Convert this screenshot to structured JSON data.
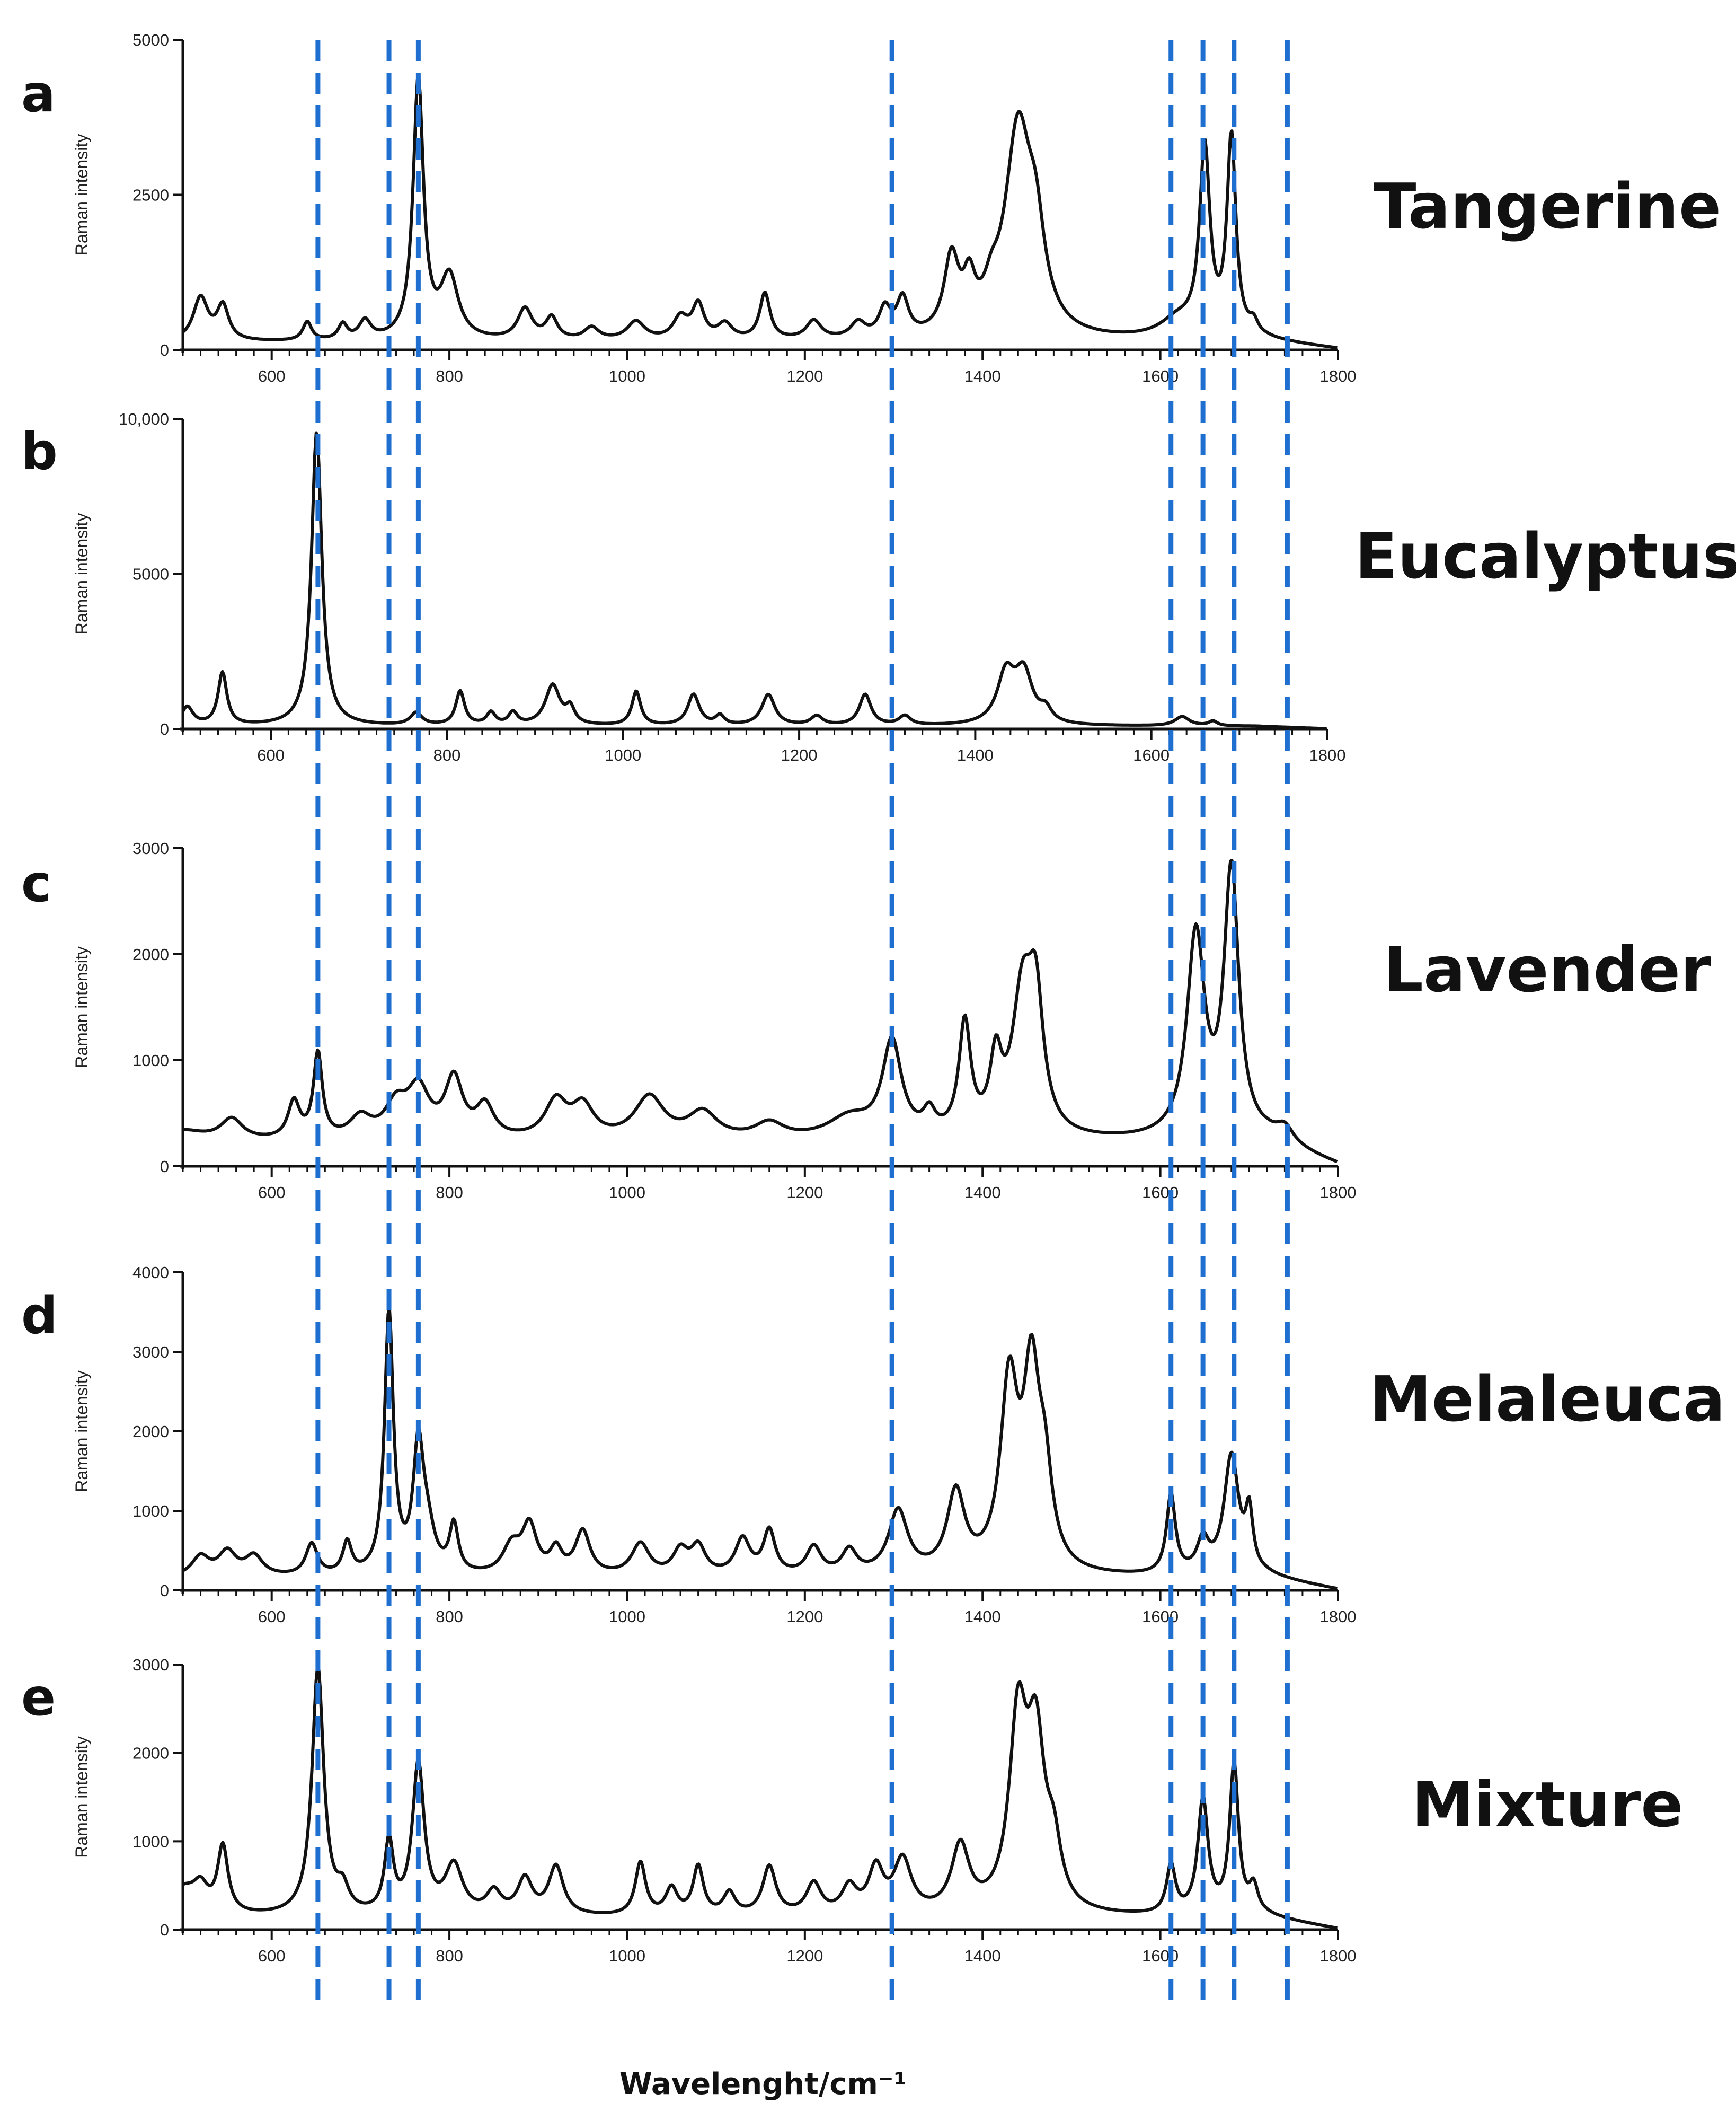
{
  "figure": {
    "xlabel": "Wavelenght/cm⁻¹",
    "guide_lines_x": [
      652,
      732,
      765,
      1298,
      1612,
      1648,
      1683,
      1743
    ],
    "guide_color": "#1f6fd1",
    "line_color": "#111111"
  },
  "chart_data": [
    {
      "type": "line",
      "panel": "a",
      "title": "Tangerine",
      "ylabel": "Raman intensity",
      "xlim": [
        500,
        1800
      ],
      "ylim": [
        0,
        5000
      ],
      "xticks": [
        600,
        800,
        1000,
        1200,
        1400,
        1600,
        1800
      ],
      "yticks": [
        0,
        2500,
        5000
      ],
      "ytick_labels": [
        "0",
        "2500",
        "5000"
      ],
      "baseline": 120,
      "peaks": [
        [
          520,
          700,
          10
        ],
        [
          545,
          550,
          8
        ],
        [
          640,
          300,
          6
        ],
        [
          680,
          250,
          6
        ],
        [
          705,
          300,
          8
        ],
        [
          765,
          4200,
          7
        ],
        [
          800,
          1000,
          12
        ],
        [
          885,
          500,
          10
        ],
        [
          915,
          350,
          8
        ],
        [
          960,
          200,
          10
        ],
        [
          1010,
          300,
          12
        ],
        [
          1060,
          350,
          10
        ],
        [
          1080,
          550,
          8
        ],
        [
          1110,
          250,
          10
        ],
        [
          1155,
          750,
          7
        ],
        [
          1210,
          300,
          10
        ],
        [
          1260,
          250,
          10
        ],
        [
          1290,
          450,
          8
        ],
        [
          1310,
          600,
          8
        ],
        [
          1365,
          1200,
          10
        ],
        [
          1385,
          700,
          8
        ],
        [
          1410,
          400,
          10
        ],
        [
          1440,
          3300,
          18
        ],
        [
          1460,
          1200,
          12
        ],
        [
          1620,
          300,
          25
        ],
        [
          1650,
          3000,
          7
        ],
        [
          1680,
          3200,
          6
        ],
        [
          1705,
          200,
          6
        ]
      ]
    },
    {
      "type": "line",
      "panel": "b",
      "title": "Eucalyptus",
      "ylabel": "Raman intensity",
      "xlim": [
        500,
        1800
      ],
      "ylim": [
        0,
        10000
      ],
      "xticks": [
        600,
        800,
        1000,
        1200,
        1400,
        1600,
        1800
      ],
      "yticks": [
        0,
        5000,
        10000
      ],
      "ytick_labels": [
        "0",
        "5000",
        "10,000"
      ],
      "baseline": 80,
      "peaks": [
        [
          505,
          600,
          8
        ],
        [
          545,
          1700,
          6
        ],
        [
          652,
          9500,
          7
        ],
        [
          765,
          400,
          8
        ],
        [
          815,
          1100,
          6
        ],
        [
          850,
          400,
          6
        ],
        [
          875,
          400,
          6
        ],
        [
          920,
          1300,
          10
        ],
        [
          940,
          500,
          6
        ],
        [
          1015,
          1100,
          6
        ],
        [
          1080,
          1000,
          8
        ],
        [
          1110,
          300,
          6
        ],
        [
          1165,
          1000,
          9
        ],
        [
          1220,
          300,
          8
        ],
        [
          1275,
          1000,
          8
        ],
        [
          1320,
          300,
          8
        ],
        [
          1435,
          1600,
          12
        ],
        [
          1455,
          1600,
          12
        ],
        [
          1480,
          400,
          8
        ],
        [
          1635,
          300,
          10
        ],
        [
          1670,
          150,
          6
        ]
      ]
    },
    {
      "type": "line",
      "panel": "c",
      "title": "Lavender",
      "ylabel": "Raman intensity",
      "xlim": [
        500,
        1800
      ],
      "ylim": [
        0,
        3000
      ],
      "xticks": [
        600,
        800,
        1000,
        1200,
        1400,
        1600,
        1800
      ],
      "yticks": [
        0,
        1000,
        2000,
        3000
      ],
      "ytick_labels": [
        "0",
        "1000",
        "2000",
        "3000"
      ],
      "baseline": 220,
      "peaks": [
        [
          500,
          100,
          30
        ],
        [
          555,
          200,
          15
        ],
        [
          625,
          350,
          8
        ],
        [
          652,
          800,
          6
        ],
        [
          700,
          200,
          15
        ],
        [
          740,
          300,
          15
        ],
        [
          765,
          450,
          15
        ],
        [
          805,
          550,
          12
        ],
        [
          840,
          300,
          12
        ],
        [
          920,
          350,
          15
        ],
        [
          950,
          300,
          15
        ],
        [
          1025,
          400,
          20
        ],
        [
          1085,
          250,
          20
        ],
        [
          1160,
          150,
          20
        ],
        [
          1250,
          200,
          30
        ],
        [
          1298,
          900,
          13
        ],
        [
          1340,
          200,
          8
        ],
        [
          1380,
          1050,
          8
        ],
        [
          1415,
          650,
          8
        ],
        [
          1445,
          1300,
          14
        ],
        [
          1460,
          1100,
          10
        ],
        [
          1640,
          1900,
          12
        ],
        [
          1680,
          2500,
          10
        ],
        [
          1740,
          150,
          12
        ]
      ]
    },
    {
      "type": "line",
      "panel": "d",
      "title": "Melaleuca",
      "ylabel": "Raman intensity",
      "xlim": [
        500,
        1800
      ],
      "ylim": [
        0,
        4000
      ],
      "xticks": [
        600,
        800,
        1000,
        1200,
        1400,
        1600,
        1800
      ],
      "yticks": [
        0,
        1000,
        2000,
        3000,
        4000
      ],
      "ytick_labels": [
        "0",
        "1000",
        "2000",
        "3000",
        "4000"
      ],
      "baseline": 150,
      "peaks": [
        [
          520,
          250,
          12
        ],
        [
          550,
          300,
          12
        ],
        [
          580,
          250,
          12
        ],
        [
          645,
          400,
          8
        ],
        [
          685,
          400,
          6
        ],
        [
          732,
          3300,
          6
        ],
        [
          765,
          1500,
          7
        ],
        [
          775,
          500,
          10
        ],
        [
          805,
          600,
          6
        ],
        [
          870,
          350,
          12
        ],
        [
          890,
          600,
          10
        ],
        [
          920,
          300,
          8
        ],
        [
          950,
          550,
          10
        ],
        [
          1015,
          400,
          12
        ],
        [
          1060,
          300,
          10
        ],
        [
          1080,
          350,
          10
        ],
        [
          1130,
          450,
          10
        ],
        [
          1160,
          550,
          8
        ],
        [
          1210,
          350,
          10
        ],
        [
          1250,
          300,
          10
        ],
        [
          1305,
          800,
          13
        ],
        [
          1370,
          1000,
          12
        ],
        [
          1430,
          2300,
          12
        ],
        [
          1455,
          2300,
          11
        ],
        [
          1470,
          1000,
          10
        ],
        [
          1612,
          1000,
          6
        ],
        [
          1648,
          400,
          8
        ],
        [
          1680,
          1500,
          10
        ],
        [
          1700,
          700,
          5
        ]
      ]
    },
    {
      "type": "line",
      "panel": "e",
      "title": "Mixture",
      "ylabel": "Raman intensity",
      "xlim": [
        500,
        1800
      ],
      "ylim": [
        0,
        3000
      ],
      "xticks": [
        600,
        800,
        1000,
        1200,
        1400,
        1600,
        1800
      ],
      "yticks": [
        0,
        1000,
        2000,
        3000
      ],
      "ytick_labels": [
        "0",
        "1000",
        "2000",
        "3000"
      ],
      "baseline": 130,
      "peaks": [
        [
          500,
          300,
          20
        ],
        [
          520,
          250,
          10
        ],
        [
          545,
          750,
          7
        ],
        [
          652,
          2800,
          8
        ],
        [
          680,
          250,
          8
        ],
        [
          732,
          800,
          6
        ],
        [
          765,
          1700,
          8
        ],
        [
          805,
          550,
          12
        ],
        [
          850,
          250,
          10
        ],
        [
          885,
          400,
          10
        ],
        [
          920,
          550,
          10
        ],
        [
          1015,
          600,
          7
        ],
        [
          1050,
          300,
          8
        ],
        [
          1080,
          550,
          7
        ],
        [
          1115,
          250,
          8
        ],
        [
          1160,
          550,
          9
        ],
        [
          1210,
          350,
          10
        ],
        [
          1250,
          300,
          10
        ],
        [
          1280,
          500,
          10
        ],
        [
          1310,
          600,
          12
        ],
        [
          1375,
          750,
          12
        ],
        [
          1440,
          2100,
          12
        ],
        [
          1460,
          1800,
          12
        ],
        [
          1480,
          600,
          10
        ],
        [
          1612,
          550,
          6
        ],
        [
          1648,
          1300,
          7
        ],
        [
          1683,
          1700,
          6
        ],
        [
          1705,
          300,
          6
        ]
      ]
    }
  ]
}
